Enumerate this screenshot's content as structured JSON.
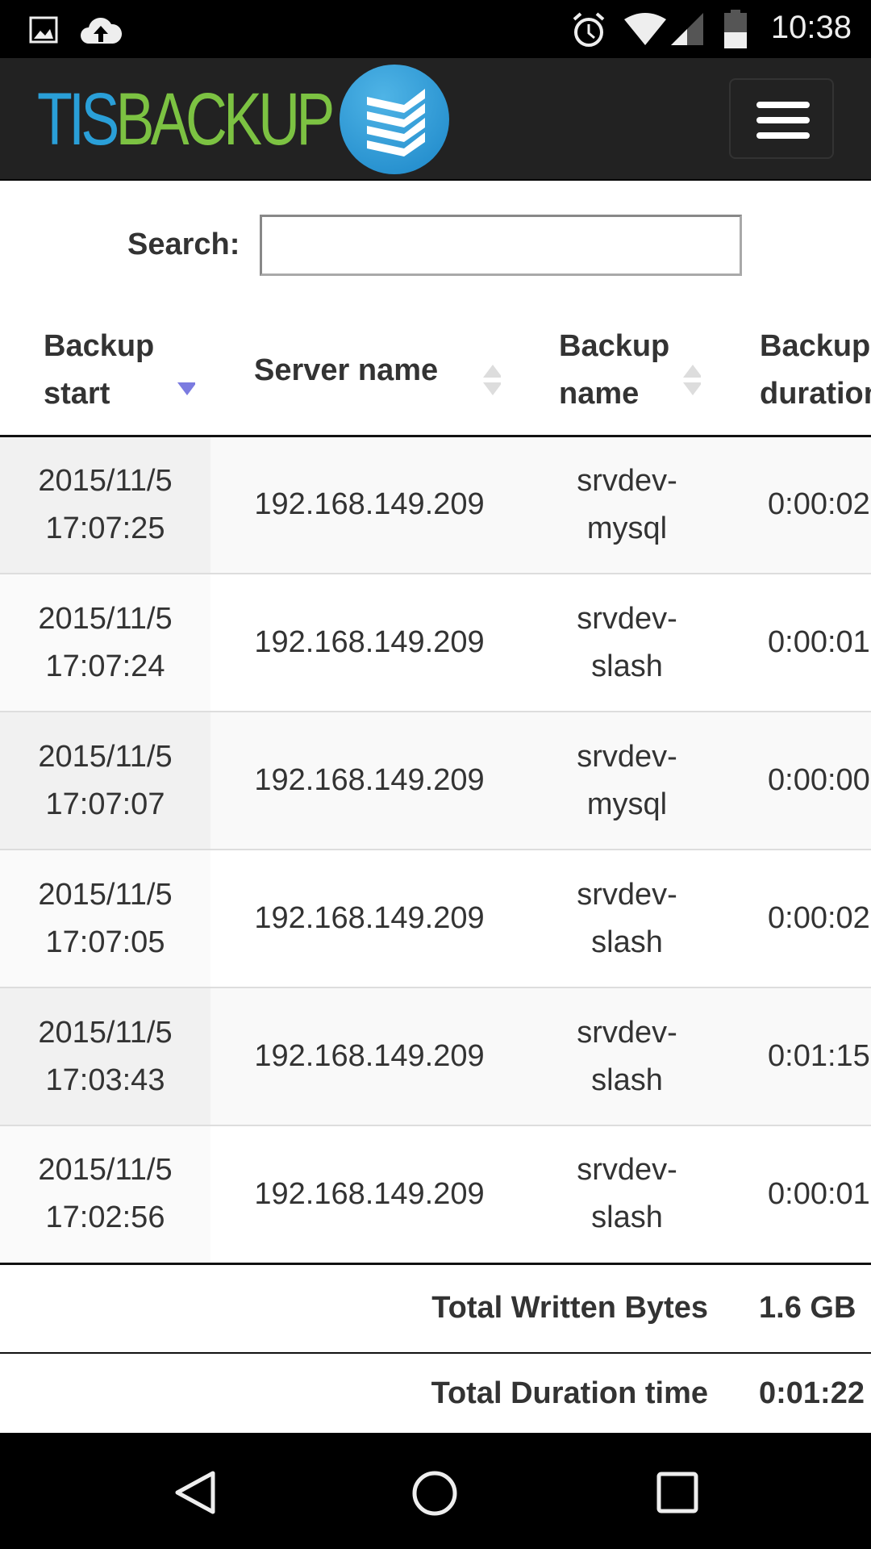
{
  "status_bar": {
    "time": "10:38",
    "icons": [
      "image-icon",
      "cloud-upload-icon",
      "alarm-icon",
      "wifi-icon",
      "signal-icon",
      "battery-icon"
    ]
  },
  "navbar": {
    "logo_tis": "TIS",
    "logo_backup": "BACKUP",
    "menu": "hamburger-menu-icon"
  },
  "search": {
    "label": "Search:",
    "value": "",
    "placeholder": ""
  },
  "table": {
    "columns": [
      {
        "label": "Backup start",
        "sort": "desc"
      },
      {
        "label": "Server name",
        "sort": "none"
      },
      {
        "label": "Backup name",
        "sort": "none"
      },
      {
        "label": "Backup duration",
        "sort": "none"
      }
    ],
    "rows": [
      {
        "start_date": "2015/11/5",
        "start_time": "17:07:25",
        "server": "192.168.149.209",
        "name1": "srvdev-",
        "name2": "mysql",
        "duration": "0:00:02"
      },
      {
        "start_date": "2015/11/5",
        "start_time": "17:07:24",
        "server": "192.168.149.209",
        "name1": "srvdev-",
        "name2": "slash",
        "duration": "0:00:01"
      },
      {
        "start_date": "2015/11/5",
        "start_time": "17:07:07",
        "server": "192.168.149.209",
        "name1": "srvdev-",
        "name2": "mysql",
        "duration": "0:00:00"
      },
      {
        "start_date": "2015/11/5",
        "start_time": "17:07:05",
        "server": "192.168.149.209",
        "name1": "srvdev-",
        "name2": "slash",
        "duration": "0:00:02"
      },
      {
        "start_date": "2015/11/5",
        "start_time": "17:03:43",
        "server": "192.168.149.209",
        "name1": "srvdev-",
        "name2": "slash",
        "duration": "0:01:15"
      },
      {
        "start_date": "2015/11/5",
        "start_time": "17:02:56",
        "server": "192.168.149.209",
        "name1": "srvdev-",
        "name2": "slash",
        "duration": "0:00:01"
      }
    ],
    "footer": [
      {
        "label": "Total Written Bytes",
        "value": "1.6 GB"
      },
      {
        "label": "Total Duration time",
        "value": "0:01:22"
      }
    ]
  },
  "colors": {
    "tis_blue": "#2a9fd8",
    "backup_green": "#7cc242",
    "navbar": "#222222",
    "sort_active": "#7b7be0"
  }
}
